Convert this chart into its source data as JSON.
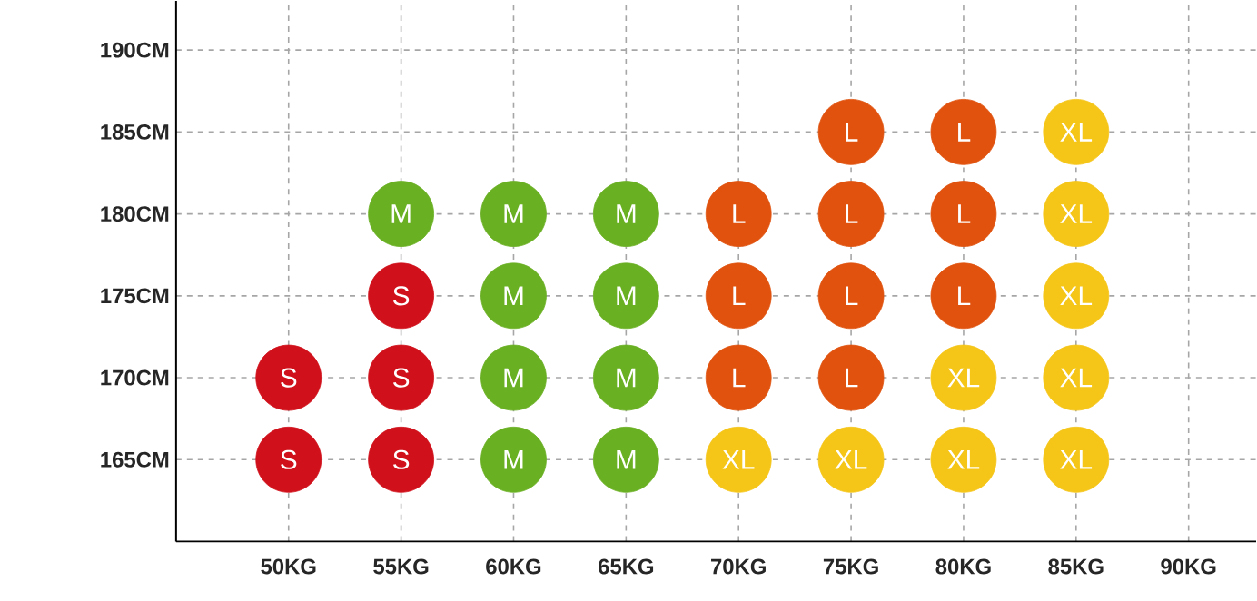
{
  "chart_data": {
    "type": "scatter",
    "grid": true,
    "xlim": [
      45,
      93
    ],
    "ylim": [
      160,
      193
    ],
    "xticks": [
      {
        "value": 50,
        "label": "50KG"
      },
      {
        "value": 55,
        "label": "55KG"
      },
      {
        "value": 60,
        "label": "60KG"
      },
      {
        "value": 65,
        "label": "65KG"
      },
      {
        "value": 70,
        "label": "70KG"
      },
      {
        "value": 75,
        "label": "75KG"
      },
      {
        "value": 80,
        "label": "80KG"
      },
      {
        "value": 85,
        "label": "85KG"
      },
      {
        "value": 90,
        "label": "90KG"
      }
    ],
    "yticks": [
      {
        "value": 165,
        "label": "165CM"
      },
      {
        "value": 170,
        "label": "170CM"
      },
      {
        "value": 175,
        "label": "175CM"
      },
      {
        "value": 180,
        "label": "180CM"
      },
      {
        "value": 185,
        "label": "185CM"
      },
      {
        "value": 190,
        "label": "190CM"
      }
    ],
    "series": [
      {
        "color": "#d0111b",
        "x": [
          50,
          50,
          55,
          55,
          55
        ],
        "values": [
          170,
          165,
          175,
          170,
          165
        ],
        "value_labels": [
          "S",
          "S",
          "S",
          "S",
          "S"
        ]
      },
      {
        "color": "#6ab023",
        "x": [
          55,
          60,
          60,
          60,
          60,
          65,
          65,
          65,
          65
        ],
        "values": [
          180,
          180,
          175,
          170,
          165,
          180,
          175,
          170,
          165
        ],
        "value_labels": [
          "M",
          "M",
          "M",
          "M",
          "M",
          "M",
          "M",
          "M",
          "M"
        ]
      },
      {
        "color": "#e0520e",
        "x": [
          70,
          70,
          70,
          75,
          75,
          75,
          75,
          80,
          80,
          80
        ],
        "values": [
          180,
          175,
          170,
          185,
          180,
          175,
          170,
          185,
          180,
          175
        ],
        "value_labels": [
          "L",
          "L",
          "L",
          "L",
          "L",
          "L",
          "L",
          "L",
          "L",
          "L"
        ]
      },
      {
        "color": "#f5c518",
        "x": [
          70,
          75,
          80,
          80,
          85,
          85,
          85,
          85,
          85
        ],
        "values": [
          165,
          165,
          170,
          165,
          185,
          180,
          175,
          170,
          165
        ],
        "value_labels": [
          "XL",
          "XL",
          "XL",
          "XL",
          "XL",
          "XL",
          "XL",
          "XL",
          "XL"
        ]
      }
    ]
  }
}
